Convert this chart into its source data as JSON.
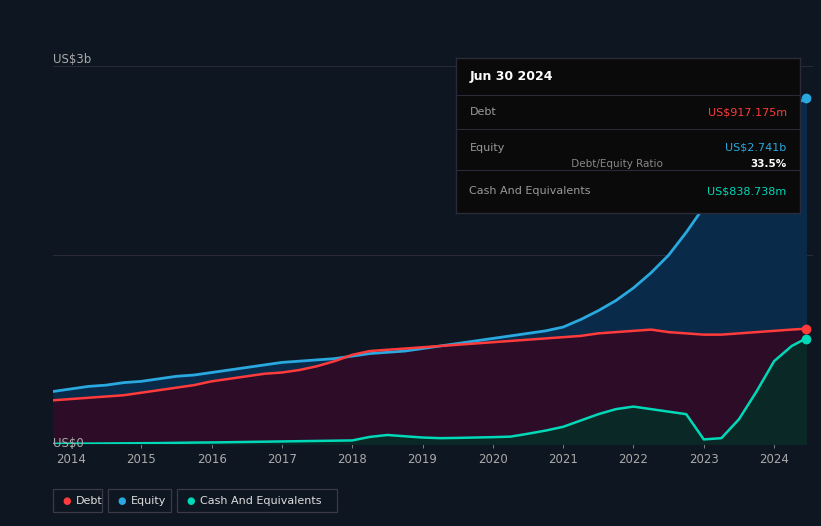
{
  "background_color": "#0e1621",
  "chart_bg_color": "#0e1621",
  "title_box": {
    "date": "Jun 30 2024",
    "debt_label": "Debt",
    "debt_value": "US$917.175m",
    "debt_color": "#ff3b3b",
    "equity_label": "Equity",
    "equity_value": "US$2.741b",
    "equity_color": "#29a9e0",
    "ratio_value": "33.5%",
    "ratio_label": " Debt/Equity Ratio",
    "ratio_value_color": "#ffffff",
    "ratio_label_color": "#888888",
    "cash_label": "Cash And Equivalents",
    "cash_value": "US$838.738m",
    "cash_color": "#00d9b8"
  },
  "ylabel_top": "US$3b",
  "ylabel_bot": "US$0",
  "x_labels": [
    "2014",
    "2015",
    "2016",
    "2017",
    "2018",
    "2019",
    "2020",
    "2021",
    "2022",
    "2023",
    "2024"
  ],
  "debt_color": "#ff3b3b",
  "equity_color": "#29a9e0",
  "cash_color": "#00d9b8",
  "equity_fill_color": "#0a2a4a",
  "debt_fill_color": "#2d0c28",
  "cash_fill_color": "#0a2825",
  "legend_labels": [
    "Debt",
    "Equity",
    "Cash And Equivalents"
  ],
  "years": [
    2013.75,
    2014.0,
    2014.25,
    2014.5,
    2014.75,
    2015.0,
    2015.25,
    2015.5,
    2015.75,
    2016.0,
    2016.25,
    2016.5,
    2016.75,
    2017.0,
    2017.25,
    2017.5,
    2017.75,
    2018.0,
    2018.25,
    2018.5,
    2018.75,
    2019.0,
    2019.25,
    2019.5,
    2019.75,
    2020.0,
    2020.25,
    2020.5,
    2020.75,
    2021.0,
    2021.25,
    2021.5,
    2021.75,
    2022.0,
    2022.25,
    2022.5,
    2022.75,
    2023.0,
    2023.25,
    2023.5,
    2023.75,
    2024.0,
    2024.25,
    2024.45
  ],
  "equity": [
    0.42,
    0.44,
    0.46,
    0.47,
    0.49,
    0.5,
    0.52,
    0.54,
    0.55,
    0.57,
    0.59,
    0.61,
    0.63,
    0.65,
    0.66,
    0.67,
    0.68,
    0.7,
    0.72,
    0.73,
    0.74,
    0.76,
    0.78,
    0.8,
    0.82,
    0.84,
    0.86,
    0.88,
    0.9,
    0.93,
    0.99,
    1.06,
    1.14,
    1.24,
    1.36,
    1.5,
    1.68,
    1.88,
    2.05,
    2.2,
    2.38,
    2.55,
    2.68,
    2.741
  ],
  "debt": [
    0.35,
    0.36,
    0.37,
    0.38,
    0.39,
    0.41,
    0.43,
    0.45,
    0.47,
    0.5,
    0.52,
    0.54,
    0.56,
    0.57,
    0.59,
    0.62,
    0.66,
    0.71,
    0.74,
    0.75,
    0.76,
    0.77,
    0.78,
    0.79,
    0.8,
    0.81,
    0.82,
    0.83,
    0.84,
    0.85,
    0.86,
    0.88,
    0.89,
    0.9,
    0.91,
    0.89,
    0.88,
    0.87,
    0.87,
    0.88,
    0.89,
    0.9,
    0.91,
    0.917
  ],
  "cash": [
    0.005,
    0.006,
    0.007,
    0.008,
    0.009,
    0.01,
    0.011,
    0.013,
    0.015,
    0.016,
    0.018,
    0.02,
    0.022,
    0.024,
    0.026,
    0.028,
    0.03,
    0.032,
    0.06,
    0.075,
    0.065,
    0.055,
    0.05,
    0.052,
    0.055,
    0.058,
    0.062,
    0.085,
    0.11,
    0.14,
    0.19,
    0.24,
    0.28,
    0.3,
    0.28,
    0.26,
    0.24,
    0.04,
    0.05,
    0.2,
    0.42,
    0.66,
    0.78,
    0.839
  ]
}
